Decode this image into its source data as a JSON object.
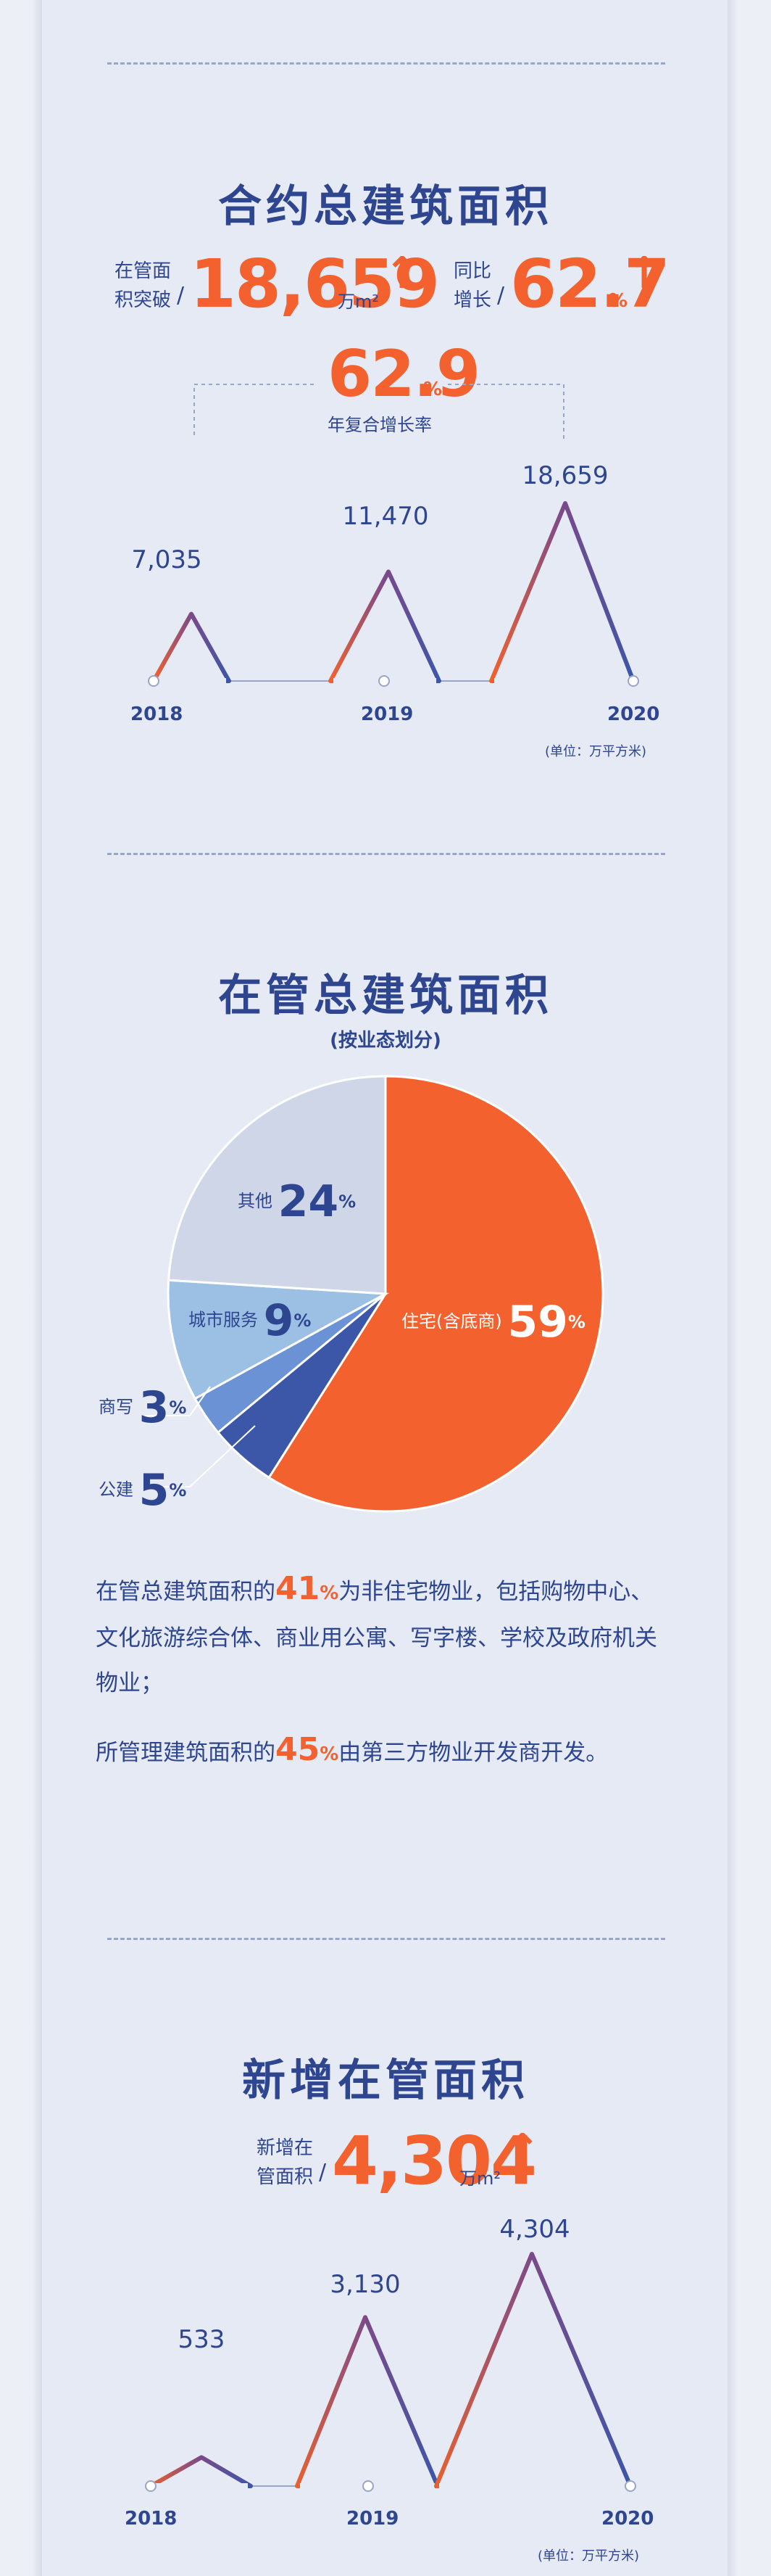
{
  "section1": {
    "title": "合约总建筑面积",
    "stat1": {
      "label1": "在管面",
      "label2": "积突破",
      "slash": "/",
      "value": "18,659",
      "unit": "万m²",
      "arrow": "↑"
    },
    "stat2": {
      "label1": "同比",
      "label2": "增长",
      "slash": "/",
      "value": "62.7",
      "unit": "%",
      "arrow": "↑"
    },
    "cagr": {
      "value": "62.9",
      "unit": "%",
      "label": "年复合增长率"
    },
    "unit_note": "(单位：万平方米)"
  },
  "section2": {
    "title": "在管总建筑面积",
    "subtitle": "(按业态划分)",
    "para1": {
      "pre": "在管总建筑面积的",
      "value": "41",
      "pct": "%",
      "post": "为非住宅物业，包括购物中心、",
      "line2": "文化旅游综合体、商业用公寓、写字楼、学校及政府机关",
      "line3": "物业；"
    },
    "para2": {
      "pre": "所管理建筑面积的",
      "value": "45",
      "pct": "%",
      "post": "由第三方物业开发商开发。"
    }
  },
  "section3": {
    "title": "新增在管面积",
    "stat": {
      "label1": "新增在",
      "label2": "管面积",
      "slash": "/",
      "value": "4,304",
      "unit": "万m²",
      "arrow": "↑"
    },
    "unit_note": "(单位：万平方米)"
  },
  "colors": {
    "navy": "#2e4590",
    "orange": "#f2612e",
    "light_blue": "#9cc0e4",
    "mid_blue": "#6a92d4",
    "dark_blue": "#3c56a8",
    "gray_blue": "#cfd6e8"
  },
  "chart_data": [
    {
      "type": "area",
      "categories": [
        "2018",
        "2019",
        "2020"
      ],
      "series": [
        {
          "values": [
            7035,
            11470,
            18659
          ],
          "labels": [
            "7,035",
            "11,470",
            "18,659"
          ]
        }
      ]
    },
    {
      "type": "pie",
      "slices": [
        {
          "name": "住宅(含底商)",
          "value": 59,
          "color": "#f2612e"
        },
        {
          "name": "公建",
          "value": 5,
          "color": "#3c56a8"
        },
        {
          "name": "商写",
          "value": 3,
          "color": "#6a92d4"
        },
        {
          "name": "城市服务",
          "value": 9,
          "color": "#9cc0e4"
        },
        {
          "name": "其他",
          "value": 24,
          "color": "#cfd6e8"
        }
      ]
    },
    {
      "type": "area",
      "categories": [
        "2018",
        "2019",
        "2020"
      ],
      "series": [
        {
          "values": [
            533,
            3130,
            4304
          ],
          "labels": [
            "533",
            "3,130",
            "4,304"
          ]
        }
      ]
    }
  ]
}
